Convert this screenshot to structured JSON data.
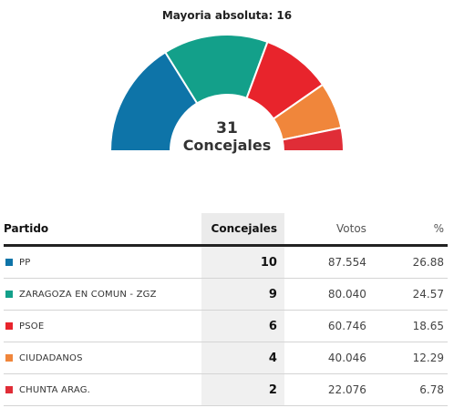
{
  "majority_text": "Mayoria absoluta: 16",
  "total_seats_number": "31",
  "total_seats_label": "Concejales",
  "table": {
    "headers": {
      "party": "Partido",
      "seats": "Concejales",
      "votes": "Votos",
      "pct": "%"
    }
  },
  "chart_data": {
    "type": "pie",
    "total_seats": 31,
    "majority": 16,
    "series": [
      {
        "name": "PP",
        "seats": 10,
        "votes": "87.554",
        "pct": "26.88",
        "color": "#0e74a8"
      },
      {
        "name": "ZARAGOZA EN COMUN - ZGZ",
        "seats": 9,
        "votes": "80.040",
        "pct": "24.57",
        "color": "#13a08a"
      },
      {
        "name": "PSOE",
        "seats": 6,
        "votes": "60.746",
        "pct": "18.65",
        "color": "#e8242c"
      },
      {
        "name": "CIUDADANOS",
        "seats": 4,
        "votes": "40.046",
        "pct": "12.29",
        "color": "#f0863b"
      },
      {
        "name": "CHUNTA ARAG.",
        "seats": 2,
        "votes": "22.076",
        "pct": "6.78",
        "color": "#e02d37"
      }
    ]
  }
}
